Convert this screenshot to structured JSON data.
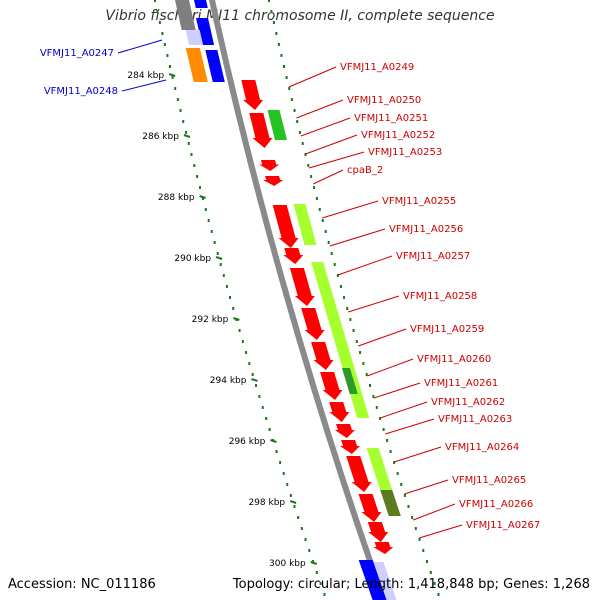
{
  "title": "Vibrio fischeri MJ11 chromosome II, complete sequence",
  "footer": {
    "accession": "Accession: NC_011186",
    "summary": "Topology: circular; Length: 1,418,848 bp; Genes: 1,268"
  },
  "ticks": [
    "284 kbp",
    "286 kbp",
    "288 kbp",
    "290 kbp",
    "292 kbp",
    "294 kbp",
    "296 kbp",
    "298 kbp",
    "300 kbp"
  ],
  "colors": {
    "backbone": "#8a8a8a",
    "forward_cds": "#ff0000",
    "reverse_cds": "#0000ff",
    "feature_light_green": "#a6ff2e",
    "feature_green": "#22c322",
    "feature_dark_olive": "#5c7a1e",
    "feature_orange": "#ff8c00",
    "label_forward": "#cc0000",
    "label_reverse": "#0000cc",
    "tick_ring": "#1a7a1a"
  },
  "genes_left": [
    "VFMJ11_A0247",
    "VFMJ11_A0248"
  ],
  "genes_right": [
    "VFMJ11_A0249",
    "VFMJ11_A0250",
    "VFMJ11_A0251",
    "VFMJ11_A0252",
    "VFMJ11_A0253",
    "cpaB_2",
    "VFMJ11_A0255",
    "VFMJ11_A0256",
    "VFMJ11_A0257",
    "VFMJ11_A0258",
    "VFMJ11_A0259",
    "VFMJ11_A0260",
    "VFMJ11_A0261",
    "VFMJ11_A0262",
    "VFMJ11_A0263",
    "VFMJ11_A0264",
    "VFMJ11_A0265",
    "VFMJ11_A0266",
    "VFMJ11_A0267"
  ]
}
